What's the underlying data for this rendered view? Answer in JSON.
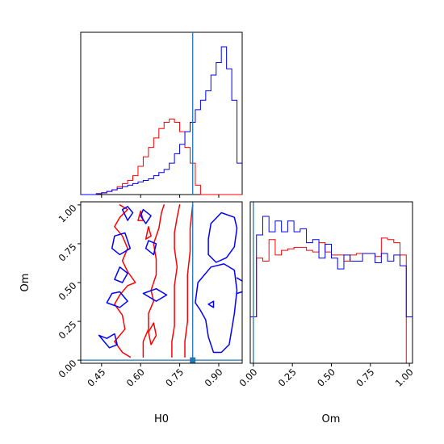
{
  "chart_data": {
    "type": "corner",
    "parameters": [
      "H0",
      "Om"
    ],
    "truth": {
      "H0": 0.8,
      "Om": 0.0,
      "color": "#1f77b4"
    },
    "colors": {
      "red_set": "#ff0000",
      "blue_set": "#0000ff"
    },
    "axes": {
      "H0": {
        "xlabel": "H0",
        "range": [
          0.37,
          0.99
        ],
        "ticks": [
          0.45,
          0.6,
          0.75,
          0.9
        ],
        "tick_labels": [
          "0.45",
          "0.60",
          "0.75",
          "0.90"
        ]
      },
      "Om": {
        "xlabel": "Om",
        "ylabel": "Om",
        "range": [
          -0.02,
          1.02
        ],
        "ticks": [
          0.0,
          0.25,
          0.5,
          0.75,
          1.0
        ],
        "tick_labels": [
          "0.00",
          "0.25",
          "0.50",
          "0.75",
          "1.00"
        ]
      }
    },
    "hist_H0": {
      "bin_edges": [
        0.37,
        0.39,
        0.41,
        0.43,
        0.45,
        0.47,
        0.49,
        0.51,
        0.53,
        0.55,
        0.57,
        0.59,
        0.61,
        0.63,
        0.65,
        0.67,
        0.69,
        0.71,
        0.73,
        0.75,
        0.77,
        0.79,
        0.81,
        0.83,
        0.85,
        0.87,
        0.89,
        0.91,
        0.93,
        0.95,
        0.97,
        0.99
      ],
      "series": [
        {
          "name": "red",
          "color": "#ff0000",
          "values": [
            0,
            0,
            0,
            0.3,
            0.6,
            1,
            1.5,
            2.5,
            3.5,
            4.5,
            6,
            9,
            12,
            15,
            18,
            21,
            23,
            24,
            23,
            20,
            15,
            10,
            3,
            0,
            0,
            0,
            0,
            0,
            0,
            0,
            0
          ]
        },
        {
          "name": "blue",
          "color": "#0000ff",
          "values": [
            0,
            0,
            0,
            0.3,
            0.5,
            1,
            1.5,
            2,
            2.5,
            3,
            3.5,
            4,
            4.5,
            5,
            6,
            7,
            8,
            10,
            13,
            16,
            20,
            23,
            27,
            30,
            33,
            38,
            42,
            47,
            40,
            30,
            10
          ]
        }
      ]
    },
    "hist_Om": {
      "bin_edges": [
        -0.02,
        0.02,
        0.06,
        0.1,
        0.14,
        0.18,
        0.22,
        0.26,
        0.3,
        0.34,
        0.38,
        0.42,
        0.46,
        0.5,
        0.54,
        0.58,
        0.62,
        0.66,
        0.7,
        0.74,
        0.78,
        0.82,
        0.86,
        0.9,
        0.94,
        0.98,
        1.02
      ],
      "series": [
        {
          "name": "red",
          "color": "#ff0000",
          "values": [
            30,
            68,
            66,
            80,
            70,
            73,
            74,
            75,
            75,
            73,
            72,
            78,
            72,
            70,
            70,
            66,
            70,
            71,
            71,
            71,
            69,
            81,
            80,
            78,
            70,
            0
          ]
        },
        {
          "name": "blue",
          "color": "#0000ff",
          "values": [
            30,
            83,
            95,
            85,
            92,
            85,
            92,
            85,
            87,
            78,
            80,
            68,
            77,
            68,
            61,
            70,
            66,
            66,
            71,
            71,
            65,
            71,
            66,
            70,
            63,
            30
          ]
        }
      ]
    },
    "contours_H0_Om": [
      {
        "color": "#ff0000",
        "points": [
          [
            0.56,
            0.02
          ],
          [
            0.53,
            0.05
          ],
          [
            0.5,
            0.12
          ],
          [
            0.54,
            0.2
          ],
          [
            0.53,
            0.29
          ],
          [
            0.5,
            0.36
          ],
          [
            0.52,
            0.42
          ],
          [
            0.55,
            0.48
          ],
          [
            0.58,
            0.5
          ],
          [
            0.55,
            0.57
          ],
          [
            0.53,
            0.64
          ],
          [
            0.55,
            0.72
          ],
          [
            0.53,
            0.8
          ],
          [
            0.5,
            0.86
          ],
          [
            0.52,
            0.92
          ],
          [
            0.55,
            0.97
          ],
          [
            0.52,
            1.0
          ]
        ]
      },
      {
        "color": "#ff0000",
        "points": [
          [
            0.61,
            0.02
          ],
          [
            0.61,
            0.12
          ],
          [
            0.63,
            0.2
          ],
          [
            0.63,
            0.3
          ],
          [
            0.65,
            0.38
          ],
          [
            0.64,
            0.45
          ],
          [
            0.66,
            0.55
          ],
          [
            0.66,
            0.65
          ],
          [
            0.65,
            0.75
          ],
          [
            0.67,
            0.85
          ],
          [
            0.68,
            0.95
          ],
          [
            0.69,
            1.0
          ]
        ]
      },
      {
        "color": "#ff0000",
        "points": [
          [
            0.72,
            0.02
          ],
          [
            0.72,
            0.12
          ],
          [
            0.73,
            0.22
          ],
          [
            0.73,
            0.35
          ],
          [
            0.73,
            0.48
          ],
          [
            0.74,
            0.6
          ],
          [
            0.73,
            0.72
          ],
          [
            0.73,
            0.82
          ],
          [
            0.74,
            0.92
          ],
          [
            0.75,
            1.0
          ]
        ]
      },
      {
        "color": "#ff0000",
        "points": [
          [
            0.77,
            0.02
          ],
          [
            0.77,
            0.12
          ],
          [
            0.78,
            0.25
          ],
          [
            0.78,
            0.4
          ],
          [
            0.78,
            0.55
          ],
          [
            0.79,
            0.7
          ],
          [
            0.79,
            0.85
          ],
          [
            0.8,
            1.0
          ]
        ]
      },
      {
        "color": "#ff0000",
        "points": [
          [
            0.64,
            0.1
          ],
          [
            0.63,
            0.18
          ],
          [
            0.65,
            0.24
          ],
          [
            0.66,
            0.16
          ],
          [
            0.64,
            0.1
          ]
        ]
      },
      {
        "color": "#ff0000",
        "points": [
          [
            0.62,
            0.78
          ],
          [
            0.63,
            0.86
          ],
          [
            0.64,
            0.8
          ],
          [
            0.62,
            0.78
          ]
        ]
      },
      {
        "color": "#ff0000",
        "points": [
          [
            0.59,
            0.9
          ],
          [
            0.6,
            0.96
          ],
          [
            0.61,
            0.9
          ],
          [
            0.59,
            0.9
          ]
        ]
      },
      {
        "color": "#0000ff",
        "points": [
          [
            0.44,
            0.16
          ],
          [
            0.48,
            0.08
          ],
          [
            0.51,
            0.1
          ],
          [
            0.5,
            0.17
          ],
          [
            0.47,
            0.14
          ],
          [
            0.44,
            0.16
          ]
        ]
      },
      {
        "color": "#0000ff",
        "points": [
          [
            0.47,
            0.37
          ],
          [
            0.52,
            0.34
          ],
          [
            0.55,
            0.38
          ],
          [
            0.52,
            0.44
          ],
          [
            0.49,
            0.43
          ],
          [
            0.47,
            0.37
          ]
        ]
      },
      {
        "color": "#0000ff",
        "points": [
          [
            0.5,
            0.52
          ],
          [
            0.53,
            0.5
          ],
          [
            0.55,
            0.56
          ],
          [
            0.52,
            0.6
          ],
          [
            0.5,
            0.52
          ]
        ]
      },
      {
        "color": "#0000ff",
        "points": [
          [
            0.49,
            0.72
          ],
          [
            0.52,
            0.68
          ],
          [
            0.56,
            0.72
          ],
          [
            0.54,
            0.82
          ],
          [
            0.5,
            0.8
          ],
          [
            0.49,
            0.72
          ]
        ]
      },
      {
        "color": "#0000ff",
        "points": [
          [
            0.53,
            0.97
          ],
          [
            0.55,
            0.9
          ],
          [
            0.57,
            0.95
          ],
          [
            0.55,
            0.99
          ],
          [
            0.53,
            0.97
          ]
        ]
      },
      {
        "color": "#0000ff",
        "points": [
          [
            0.61,
            0.43
          ],
          [
            0.66,
            0.38
          ],
          [
            0.7,
            0.42
          ],
          [
            0.66,
            0.46
          ],
          [
            0.61,
            0.43
          ]
        ]
      },
      {
        "color": "#0000ff",
        "points": [
          [
            0.62,
            0.72
          ],
          [
            0.65,
            0.68
          ],
          [
            0.66,
            0.75
          ],
          [
            0.63,
            0.77
          ],
          [
            0.62,
            0.72
          ]
        ]
      },
      {
        "color": "#0000ff",
        "points": [
          [
            0.6,
            0.93
          ],
          [
            0.62,
            0.88
          ],
          [
            0.64,
            0.93
          ],
          [
            0.61,
            0.97
          ],
          [
            0.6,
            0.93
          ]
        ]
      },
      {
        "color": "#0000ff",
        "points": [
          [
            0.81,
            0.37
          ],
          [
            0.82,
            0.5
          ],
          [
            0.87,
            0.6
          ],
          [
            0.92,
            0.62
          ],
          [
            0.96,
            0.58
          ],
          [
            0.97,
            0.45
          ],
          [
            0.96,
            0.3
          ],
          [
            0.94,
            0.1
          ],
          [
            0.91,
            0.05
          ],
          [
            0.88,
            0.05
          ],
          [
            0.86,
            0.15
          ],
          [
            0.85,
            0.26
          ],
          [
            0.83,
            0.32
          ],
          [
            0.81,
            0.37
          ]
        ]
      },
      {
        "color": "#0000ff",
        "points": [
          [
            0.86,
            0.68
          ],
          [
            0.86,
            0.78
          ],
          [
            0.87,
            0.88
          ],
          [
            0.91,
            0.95
          ],
          [
            0.96,
            0.92
          ],
          [
            0.97,
            0.85
          ],
          [
            0.96,
            0.73
          ],
          [
            0.93,
            0.66
          ],
          [
            0.89,
            0.63
          ],
          [
            0.86,
            0.68
          ]
        ]
      },
      {
        "color": "#0000ff",
        "points": [
          [
            0.86,
            0.36
          ],
          [
            0.88,
            0.34
          ],
          [
            0.88,
            0.38
          ],
          [
            0.86,
            0.36
          ]
        ]
      },
      {
        "color": "#0000ff",
        "points": [
          [
            0.97,
            0.43
          ],
          [
            0.99,
            0.44
          ]
        ]
      },
      {
        "color": "#0000ff",
        "points": [
          [
            0.97,
            0.53
          ],
          [
            0.99,
            0.51
          ]
        ]
      }
    ]
  }
}
